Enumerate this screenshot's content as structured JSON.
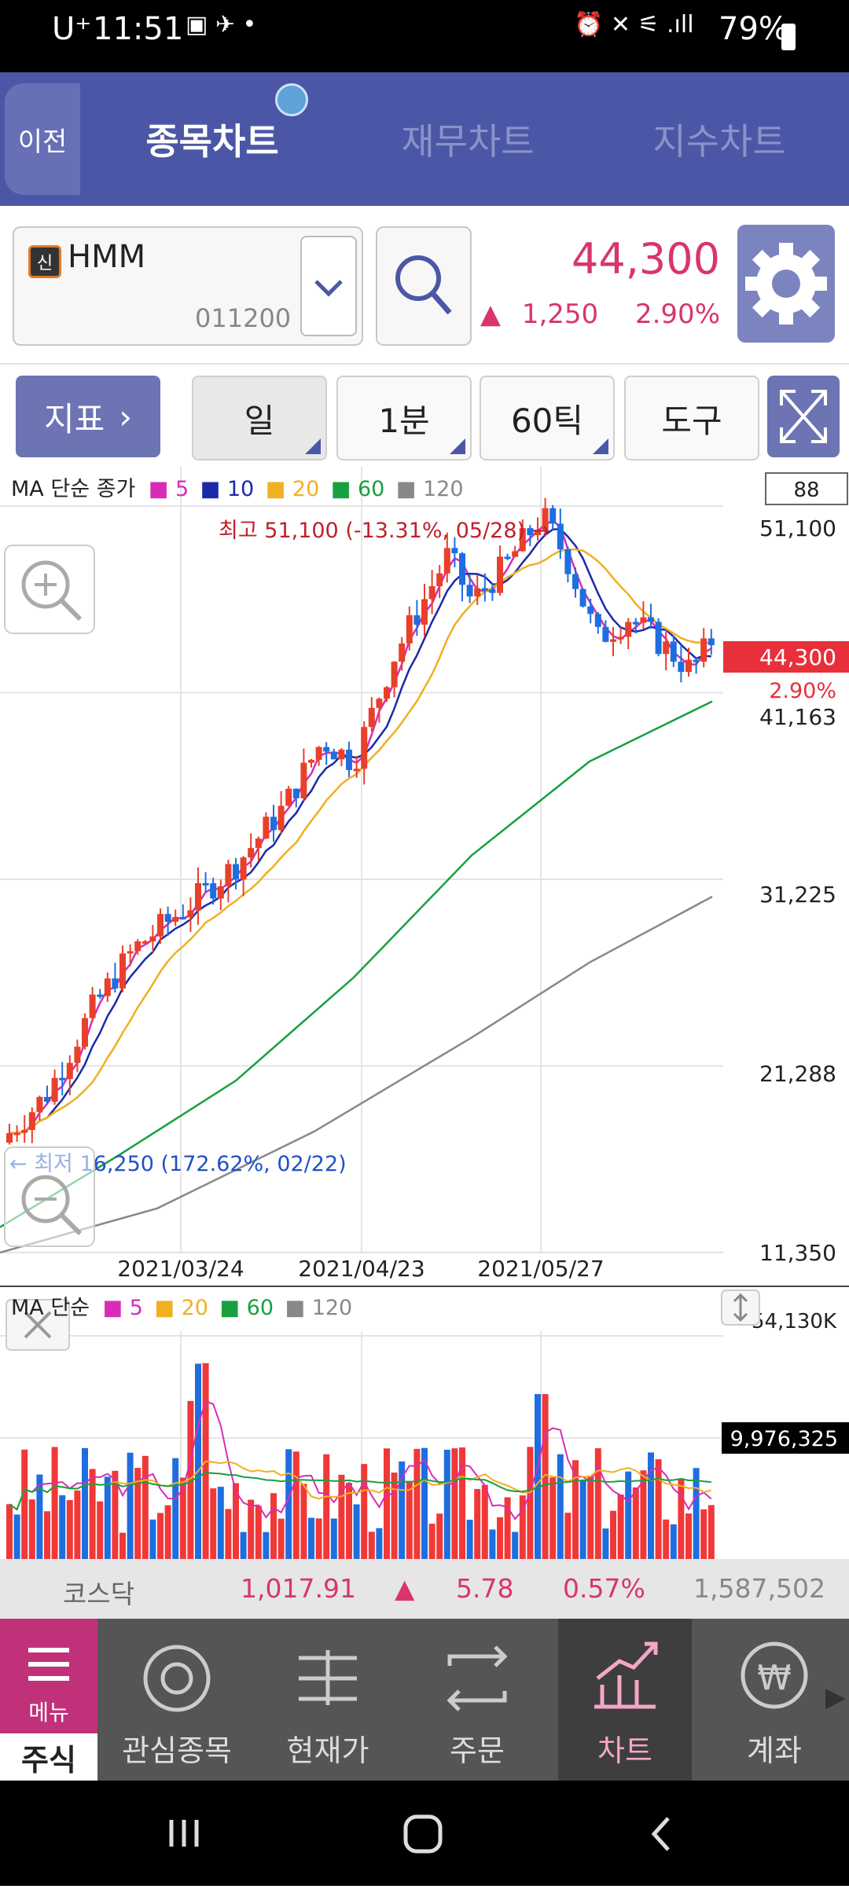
{
  "status_bar": {
    "carrier": "U⁺",
    "time": "11:51",
    "battery": "79%"
  },
  "header": {
    "back_label": "이전",
    "tabs": [
      {
        "label": "종목차트",
        "active": true
      },
      {
        "label": "재무차트",
        "active": false
      },
      {
        "label": "지수차트",
        "active": false
      }
    ]
  },
  "stock": {
    "badge": "신",
    "name": "HMM",
    "code": "011200",
    "price": "44,300",
    "change": "1,250",
    "change_pct": "2.90%",
    "change_color": "#d8356e"
  },
  "toolbar": {
    "indicator_label": "지표",
    "period_day": "일",
    "period_minute": "1분",
    "period_tick": "60틱",
    "tools_label": "도구"
  },
  "chart_labels": {
    "ma_legend_title": "MA 단순 종가",
    "ma_periods": [
      "5",
      "10",
      "20",
      "60",
      "120"
    ],
    "ma_colors": [
      "#d82cb8",
      "#1c2aa8",
      "#f0b020",
      "#18a040",
      "#888888"
    ],
    "counter_box": "88",
    "high_annotation": "최고 51,100 (-13.31%, 05/28) →",
    "low_annotation": "← 최저 16,250 (172.62%, 02/22)",
    "current_price_tag": "44,300",
    "current_pct": "2.90%",
    "y_ticks": [
      "51,100",
      "41,163",
      "31,225",
      "21,288",
      "11,350"
    ],
    "x_ticks": [
      "2021/03/24",
      "2021/04/23",
      "2021/05/27"
    ],
    "volume_legend_title": "MA 단순",
    "volume_ma_periods": [
      "5",
      "20",
      "60",
      "120"
    ],
    "volume_ma_colors": [
      "#d82cb8",
      "#f0b020",
      "#18a040",
      "#888888"
    ],
    "volume_max": "54,130K",
    "volume_current": "9,976,325"
  },
  "chart_data": {
    "type": "candlestick",
    "ylim": [
      11350,
      51100
    ],
    "y_ticks": [
      51100,
      41163,
      31225,
      21288,
      11350
    ],
    "x_ticks": [
      "2021/03/24",
      "2021/04/23",
      "2021/05/27"
    ],
    "high": {
      "value": 51100,
      "date": "05/28"
    },
    "low": {
      "value": 16250,
      "date": "02/22"
    },
    "last": 44300,
    "volume_max_k": 54130,
    "last_volume": 9976325
  },
  "index_bar": {
    "name": "코스닥",
    "value": "1,017.91",
    "change": "5.78",
    "change_pct": "0.57%",
    "volume": "1,587,502"
  },
  "bottom_nav": {
    "menu_label": "메뉴",
    "menu_sub": "주식",
    "items": [
      "관심종목",
      "현재가",
      "주문",
      "차트",
      "계좌"
    ],
    "active_index": 3
  }
}
